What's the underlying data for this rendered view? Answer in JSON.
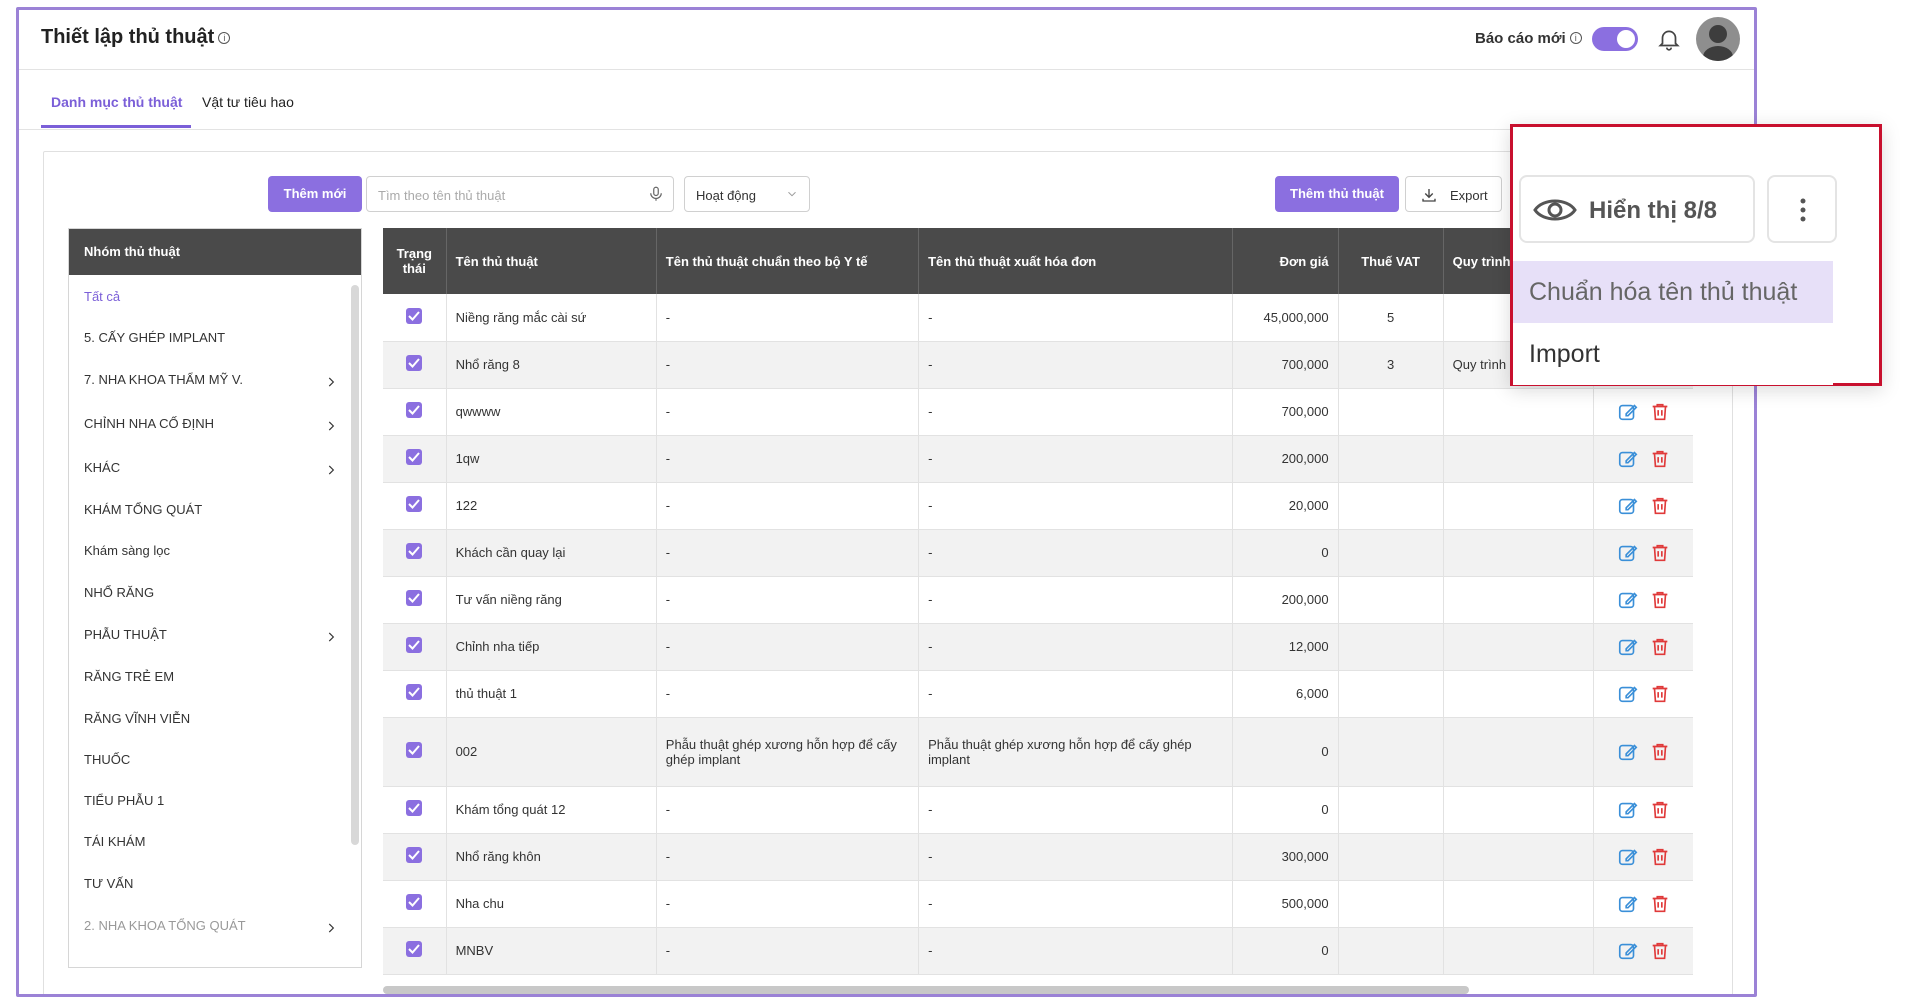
{
  "header": {
    "title": "Thiết lập thủ thuật",
    "info_glyph": "i",
    "report_label": "Báo cáo mới",
    "report_toggle_on": true
  },
  "tabs": [
    {
      "label": "Danh mục thủ thuật",
      "active": true
    },
    {
      "label": "Vật tư tiêu hao",
      "active": false
    }
  ],
  "toolbar": {
    "add_new_label": "Thêm mới",
    "search_placeholder": "Tìm theo tên thủ thuật",
    "status_select": "Hoạt động",
    "add_procedure_label": "Thêm thủ thuật",
    "export_label": "Export"
  },
  "groups": {
    "header": "Nhóm thủ thuật",
    "items": [
      {
        "label": "Tất cả",
        "has_children": false
      },
      {
        "label": "5. CẤY GHÉP IMPLANT",
        "has_children": false
      },
      {
        "label": "7. NHA KHOA THẨM MỸ V.",
        "has_children": true
      },
      {
        "label": "CHỈNH NHA CỐ ĐỊNH",
        "has_children": true
      },
      {
        "label": "KHÁC",
        "has_children": true
      },
      {
        "label": "KHÁM TỔNG QUÁT",
        "has_children": false
      },
      {
        "label": "Khám sàng lọc",
        "has_children": false
      },
      {
        "label": "NHỔ RĂNG",
        "has_children": false
      },
      {
        "label": "PHẪU THUẬT",
        "has_children": true
      },
      {
        "label": "RĂNG TRẺ EM",
        "has_children": false
      },
      {
        "label": "RĂNG VĨNH VIỄN",
        "has_children": false
      },
      {
        "label": "THUỐC",
        "has_children": false
      },
      {
        "label": "TIỂU PHẪU 1",
        "has_children": false
      },
      {
        "label": "TÁI KHÁM",
        "has_children": false
      },
      {
        "label": "TƯ VẤN",
        "has_children": false
      },
      {
        "label": "2. NHA KHOA TỔNG QUÁT",
        "has_children": true
      }
    ]
  },
  "table": {
    "columns": [
      "Trạng thái",
      "Tên thủ thuật",
      "Tên thủ thuật chuẩn theo bộ Y tế",
      "Tên thủ thuật xuất hóa đơn",
      "Đơn giá",
      "Thuế VAT",
      "Quy trình t"
    ],
    "rows": [
      {
        "name": "Niềng răng mắc cài sứ",
        "std": "-",
        "invoice": "-",
        "price": "45,000,000",
        "vat": "5",
        "process": ""
      },
      {
        "name": "Nhổ răng 8",
        "std": "-",
        "invoice": "-",
        "price": "700,000",
        "vat": "3",
        "process": "Quy trình n"
      },
      {
        "name": "qwwww",
        "std": "-",
        "invoice": "-",
        "price": "700,000",
        "vat": "",
        "process": ""
      },
      {
        "name": "1qw",
        "std": "-",
        "invoice": "-",
        "price": "200,000",
        "vat": "",
        "process": ""
      },
      {
        "name": "122",
        "std": "-",
        "invoice": "-",
        "price": "20,000",
        "vat": "",
        "process": ""
      },
      {
        "name": "Khách cần quay lại",
        "std": "-",
        "invoice": "-",
        "price": "0",
        "vat": "",
        "process": ""
      },
      {
        "name": "Tư vấn niềng răng",
        "std": "-",
        "invoice": "-",
        "price": "200,000",
        "vat": "",
        "process": ""
      },
      {
        "name": "Chỉnh nha tiếp",
        "std": "-",
        "invoice": "-",
        "price": "12,000",
        "vat": "",
        "process": ""
      },
      {
        "name": "thủ thuật 1",
        "std": "-",
        "invoice": "-",
        "price": "6,000",
        "vat": "",
        "process": ""
      },
      {
        "name": "002",
        "std": "Phẫu thuật ghép xương hỗn hợp để cấy ghép implant",
        "invoice": "Phẫu thuật ghép xương hỗn hợp để cấy ghép implant",
        "price": "0",
        "vat": "",
        "process": ""
      },
      {
        "name": "Khám tổng quát 12",
        "std": "-",
        "invoice": "-",
        "price": "0",
        "vat": "",
        "process": ""
      },
      {
        "name": "Nhổ răng khôn",
        "std": "-",
        "invoice": "-",
        "price": "300,000",
        "vat": "",
        "process": ""
      },
      {
        "name": "Nha chu",
        "std": "-",
        "invoice": "-",
        "price": "500,000",
        "vat": "",
        "process": ""
      },
      {
        "name": "MNBV",
        "std": "-",
        "invoice": "-",
        "price": "0",
        "vat": "",
        "process": ""
      }
    ]
  },
  "callout": {
    "view_label": "Hiển thị 8/8",
    "menu": [
      "Chuẩn hóa tên thủ thuật",
      "Import"
    ]
  },
  "colors": {
    "accent": "#8b6fe0",
    "header_bg": "#4a4a4a",
    "callout_border": "#c8102e",
    "edit_icon": "#3a8fd8",
    "delete_icon": "#e03a3a"
  }
}
